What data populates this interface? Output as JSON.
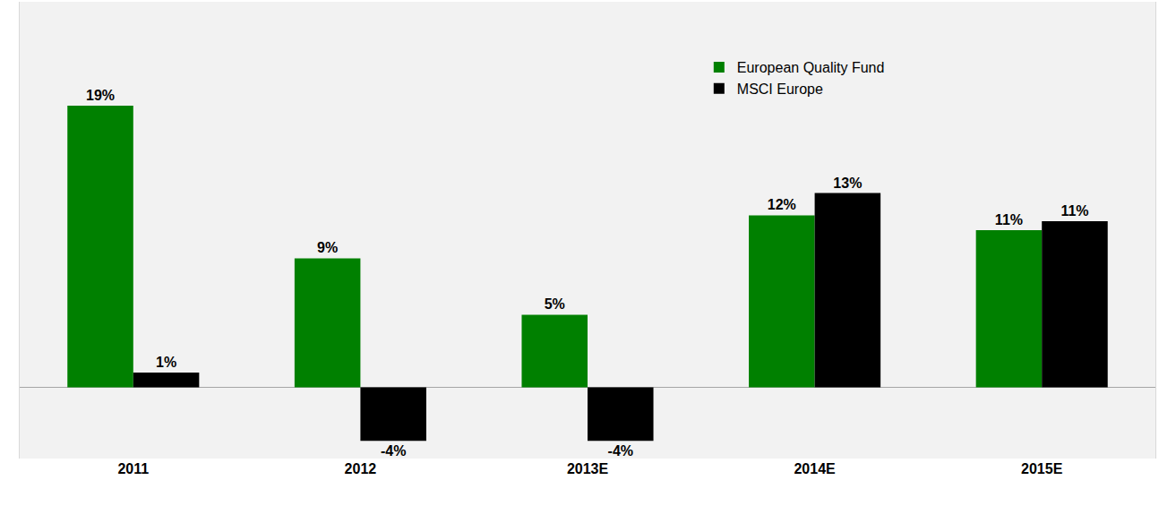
{
  "chart_data": {
    "type": "bar",
    "categories": [
      "2011",
      "2012",
      "2013E",
      "2014E",
      "2015E"
    ],
    "series": [
      {
        "name": "European Quality Fund",
        "color": "#008000",
        "values": [
          19,
          8.7,
          4.9,
          11.6,
          10.6
        ],
        "value_labels": [
          "19%",
          "9%",
          "5%",
          "12%",
          "11%"
        ]
      },
      {
        "name": "MSCI Europe",
        "color": "#000000",
        "values": [
          1,
          -3.6,
          -3.6,
          13.1,
          11.2
        ],
        "value_labels": [
          "1%",
          "-4%",
          "-4%",
          "13%",
          "11%"
        ]
      }
    ],
    "ylim": [
      -4.8,
      26
    ],
    "yticks": [
      0
    ],
    "grid": false,
    "legend": "upper right",
    "data_labels": true,
    "tick_labels": "x"
  }
}
